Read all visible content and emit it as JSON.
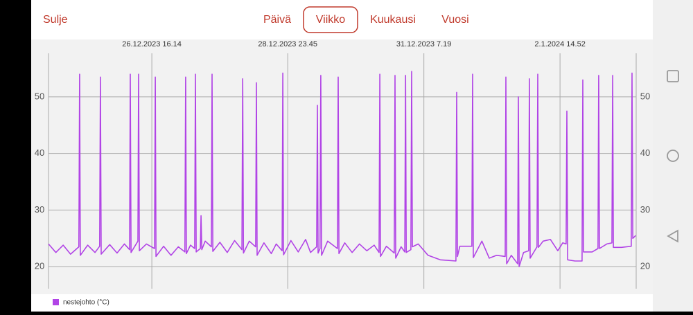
{
  "header": {
    "close": "Sulje",
    "tabs": [
      "Päivä",
      "Viikko",
      "Kuukausi",
      "Vuosi"
    ],
    "selected_tab": 1
  },
  "chart_data": {
    "type": "line",
    "x": [
      0,
      3,
      6,
      9,
      12.4,
      12.7,
      13.0,
      16,
      19,
      20.9,
      21.2,
      21.5,
      25,
      28,
      31,
      33.1,
      33.4,
      33.7,
      36.5,
      36.8,
      37.1,
      40,
      43.3,
      43.6,
      43.9,
      47,
      50,
      53,
      55.7,
      56.0,
      56.3,
      58,
      59.7,
      60.0,
      60.3,
      62.0,
      62.3,
      62.6,
      64,
      66.5,
      66.8,
      67.1,
      70,
      73,
      76,
      79.0,
      79.3,
      79.6,
      82,
      84.6,
      84.9,
      85.2,
      88,
      91,
      93,
      95.4,
      95.7,
      96.0,
      99,
      102,
      105,
      107,
      109.5,
      109.8,
      110.1,
      110.9,
      111.2,
      111.5,
      114,
      118.0,
      118.3,
      118.6,
      121,
      124,
      127,
      130,
      133,
      135.0,
      135.3,
      135.6,
      138,
      141.2,
      141.5,
      141.8,
      144,
      145.5,
      145.8,
      146.1,
      148.0,
      148.3,
      148.6,
      151,
      155,
      160,
      163,
      166.4,
      166.7,
      167.0,
      168,
      172.9,
      173.2,
      173.5,
      177,
      180,
      183,
      186.5,
      186.8,
      187.1,
      189,
      191.6,
      191.9,
      192.2,
      194,
      196.1,
      196.4,
      196.7,
      199.5,
      199.8,
      200.1,
      202,
      205,
      208,
      210,
      211.4,
      211.7,
      212.0,
      215,
      217.9,
      218.2,
      218.5,
      222,
      224.4,
      224.7,
      225.0,
      228,
      230.1,
      230.4,
      230.7,
      234,
      238.0,
      238.3,
      238.6,
      239.8
    ],
    "series": [
      {
        "name": "nestejohto (°C)",
        "color": "#b144e6",
        "values": [
          24,
          22.5,
          23.8,
          22.2,
          23.5,
          54,
          22,
          23.8,
          22.5,
          23.6,
          53.5,
          22.2,
          23.9,
          22.4,
          24,
          23,
          54,
          22.5,
          24.5,
          54,
          22.8,
          24,
          23.2,
          53.5,
          21.8,
          23.6,
          22,
          23.5,
          22.6,
          53.5,
          22.3,
          23.8,
          23.2,
          54,
          22.6,
          23.2,
          29,
          23,
          24.5,
          23.5,
          54,
          22.7,
          24.3,
          22.5,
          24.6,
          23,
          53.2,
          22.4,
          24.5,
          23.5,
          52.5,
          22,
          24.2,
          22.3,
          24,
          22.8,
          54.2,
          22.1,
          24.6,
          22.6,
          24.8,
          22.5,
          23.5,
          48.5,
          22.4,
          23.2,
          53.8,
          22,
          24.5,
          23.2,
          53.5,
          22.3,
          24.2,
          22.5,
          24,
          22.8,
          23.8,
          22.5,
          54,
          21.8,
          23.6,
          22.4,
          53.8,
          21.5,
          23.5,
          22.6,
          53.8,
          22.5,
          23,
          54.5,
          23.5,
          24,
          22,
          21.2,
          21.1,
          21,
          50.8,
          21.8,
          23.6,
          23.6,
          54,
          21.6,
          24.5,
          21.5,
          22,
          21.8,
          53.5,
          20.5,
          22,
          20.5,
          50,
          20,
          22.5,
          22.8,
          53.2,
          21.5,
          23.5,
          54,
          23.4,
          24.5,
          24.8,
          22.8,
          24.2,
          24,
          47.5,
          21.2,
          21,
          21,
          53,
          22.6,
          22.6,
          23.2,
          53.8,
          23.2,
          24,
          24.2,
          53.8,
          23.4,
          23.4,
          23.6,
          54.2,
          25,
          25.5
        ]
      }
    ],
    "xlim": [
      0,
      240
    ],
    "xticks": [
      {
        "value": 42.2,
        "label": "26.12.2023 16.14"
      },
      {
        "value": 97.7,
        "label": "28.12.2023 23.45"
      },
      {
        "value": 153.3,
        "label": "31.12.2023 7.19"
      },
      {
        "value": 208.9,
        "label": "2.1.2024 14.52"
      }
    ],
    "ylim": [
      16.1,
      57.7
    ],
    "yticks": [
      20,
      30,
      40,
      50
    ],
    "grid": true
  }
}
